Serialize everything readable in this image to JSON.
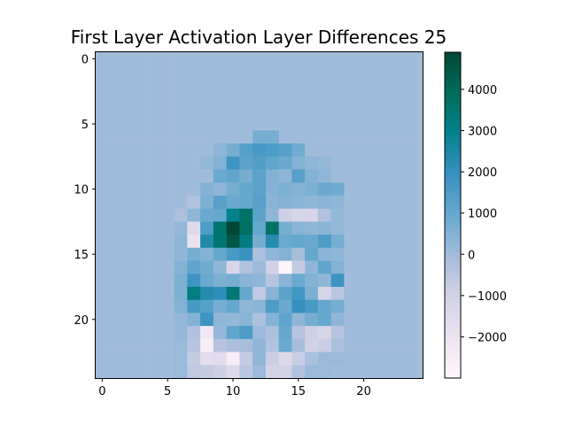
{
  "chart_data": {
    "type": "heatmap",
    "title": "First Layer Activation Layer Differences 25",
    "xlabel": "",
    "ylabel": "",
    "rows": 25,
    "cols": 25,
    "x_ticks": [
      0,
      5,
      10,
      15,
      20
    ],
    "y_ticks": [
      0,
      5,
      10,
      15,
      20
    ],
    "y_axis_inverted": true,
    "colormap": "PuBuGn",
    "value_range": [
      -3000,
      4900
    ],
    "colorbar_ticks": [
      4000,
      3000,
      2000,
      1000,
      0,
      -1000,
      -2000
    ],
    "colorbar_tick_labels": [
      "4000",
      "3000",
      "2000",
      "1000",
      "0",
      "−1000",
      "−2000"
    ],
    "background_value": 0,
    "cells": [
      {
        "r": 6,
        "c": 12,
        "v": 700
      },
      {
        "r": 6,
        "c": 13,
        "v": 700
      },
      {
        "r": 7,
        "c": 9,
        "v": 300
      },
      {
        "r": 7,
        "c": 10,
        "v": 700
      },
      {
        "r": 7,
        "c": 11,
        "v": 1300
      },
      {
        "r": 7,
        "c": 12,
        "v": 1600
      },
      {
        "r": 7,
        "c": 13,
        "v": 1500
      },
      {
        "r": 7,
        "c": 14,
        "v": 1300
      },
      {
        "r": 7,
        "c": 15,
        "v": 800
      },
      {
        "r": 8,
        "c": 8,
        "v": 200
      },
      {
        "r": 8,
        "c": 9,
        "v": 500
      },
      {
        "r": 8,
        "c": 10,
        "v": 1800
      },
      {
        "r": 8,
        "c": 11,
        "v": 1200
      },
      {
        "r": 8,
        "c": 12,
        "v": 1400
      },
      {
        "r": 8,
        "c": 13,
        "v": 1100
      },
      {
        "r": 8,
        "c": 14,
        "v": 900
      },
      {
        "r": 8,
        "c": 15,
        "v": 500
      },
      {
        "r": 8,
        "c": 16,
        "v": 300
      },
      {
        "r": 8,
        "c": 17,
        "v": 200
      },
      {
        "r": 9,
        "c": 9,
        "v": 900
      },
      {
        "r": 9,
        "c": 10,
        "v": 1100
      },
      {
        "r": 9,
        "c": 11,
        "v": 700
      },
      {
        "r": 9,
        "c": 12,
        "v": 1200
      },
      {
        "r": 9,
        "c": 13,
        "v": 500
      },
      {
        "r": 9,
        "c": 14,
        "v": 300
      },
      {
        "r": 9,
        "c": 15,
        "v": 1300
      },
      {
        "r": 9,
        "c": 16,
        "v": 500
      },
      {
        "r": 9,
        "c": 17,
        "v": 300
      },
      {
        "r": 10,
        "c": 8,
        "v": 500
      },
      {
        "r": 10,
        "c": 9,
        "v": 300
      },
      {
        "r": 10,
        "c": 10,
        "v": 700
      },
      {
        "r": 10,
        "c": 11,
        "v": 1000
      },
      {
        "r": 10,
        "c": 12,
        "v": 1200
      },
      {
        "r": 10,
        "c": 13,
        "v": 500
      },
      {
        "r": 10,
        "c": 14,
        "v": 600
      },
      {
        "r": 10,
        "c": 15,
        "v": 500
      },
      {
        "r": 10,
        "c": 16,
        "v": 600
      },
      {
        "r": 10,
        "c": 17,
        "v": 900
      },
      {
        "r": 10,
        "c": 18,
        "v": 800
      },
      {
        "r": 11,
        "c": 7,
        "v": -300
      },
      {
        "r": 11,
        "c": 8,
        "v": 600
      },
      {
        "r": 11,
        "c": 9,
        "v": 1300
      },
      {
        "r": 11,
        "c": 10,
        "v": 900
      },
      {
        "r": 11,
        "c": 11,
        "v": 1000
      },
      {
        "r": 11,
        "c": 12,
        "v": 1300
      },
      {
        "r": 11,
        "c": 13,
        "v": 400
      },
      {
        "r": 11,
        "c": 14,
        "v": 500
      },
      {
        "r": 11,
        "c": 15,
        "v": 400
      },
      {
        "r": 11,
        "c": 16,
        "v": 300
      },
      {
        "r": 11,
        "c": 17,
        "v": 400
      },
      {
        "r": 11,
        "c": 18,
        "v": 300
      },
      {
        "r": 12,
        "c": 6,
        "v": -200
      },
      {
        "r": 12,
        "c": 7,
        "v": 300
      },
      {
        "r": 12,
        "c": 8,
        "v": 900
      },
      {
        "r": 12,
        "c": 9,
        "v": 1000
      },
      {
        "r": 12,
        "c": 10,
        "v": 3000
      },
      {
        "r": 12,
        "c": 11,
        "v": 3700
      },
      {
        "r": 12,
        "c": 12,
        "v": 1200
      },
      {
        "r": 12,
        "c": 13,
        "v": 300
      },
      {
        "r": 12,
        "c": 14,
        "v": -900
      },
      {
        "r": 12,
        "c": 15,
        "v": -1200
      },
      {
        "r": 12,
        "c": 16,
        "v": -1200
      },
      {
        "r": 12,
        "c": 17,
        "v": -300
      },
      {
        "r": 12,
        "c": 18,
        "v": 200
      },
      {
        "r": 13,
        "c": 6,
        "v": 200
      },
      {
        "r": 13,
        "c": 7,
        "v": -1500
      },
      {
        "r": 13,
        "c": 8,
        "v": 1500
      },
      {
        "r": 13,
        "c": 9,
        "v": 3600
      },
      {
        "r": 13,
        "c": 10,
        "v": 4900
      },
      {
        "r": 13,
        "c": 11,
        "v": 3800
      },
      {
        "r": 13,
        "c": 12,
        "v": 1000
      },
      {
        "r": 13,
        "c": 13,
        "v": 3700
      },
      {
        "r": 13,
        "c": 14,
        "v": 700
      },
      {
        "r": 13,
        "c": 15,
        "v": 400
      },
      {
        "r": 13,
        "c": 16,
        "v": 300
      },
      {
        "r": 13,
        "c": 17,
        "v": 400
      },
      {
        "r": 13,
        "c": 18,
        "v": 200
      },
      {
        "r": 14,
        "c": 6,
        "v": 300
      },
      {
        "r": 14,
        "c": 7,
        "v": -2000
      },
      {
        "r": 14,
        "c": 8,
        "v": 2400
      },
      {
        "r": 14,
        "c": 9,
        "v": 3500
      },
      {
        "r": 14,
        "c": 10,
        "v": 4500
      },
      {
        "r": 14,
        "c": 11,
        "v": 3200
      },
      {
        "r": 14,
        "c": 12,
        "v": 700
      },
      {
        "r": 14,
        "c": 13,
        "v": 2300
      },
      {
        "r": 14,
        "c": 14,
        "v": 900
      },
      {
        "r": 14,
        "c": 15,
        "v": 1000
      },
      {
        "r": 14,
        "c": 16,
        "v": 900
      },
      {
        "r": 14,
        "c": 17,
        "v": 1500
      },
      {
        "r": 14,
        "c": 18,
        "v": 700
      },
      {
        "r": 15,
        "c": 6,
        "v": 300
      },
      {
        "r": 15,
        "c": 7,
        "v": 700
      },
      {
        "r": 15,
        "c": 8,
        "v": 500
      },
      {
        "r": 15,
        "c": 9,
        "v": 1000
      },
      {
        "r": 15,
        "c": 10,
        "v": 1600
      },
      {
        "r": 15,
        "c": 11,
        "v": 1900
      },
      {
        "r": 15,
        "c": 12,
        "v": -200
      },
      {
        "r": 15,
        "c": 13,
        "v": 300
      },
      {
        "r": 15,
        "c": 14,
        "v": 500
      },
      {
        "r": 15,
        "c": 15,
        "v": -100
      },
      {
        "r": 15,
        "c": 16,
        "v": 1000
      },
      {
        "r": 15,
        "c": 17,
        "v": 400
      },
      {
        "r": 15,
        "c": 18,
        "v": 300
      },
      {
        "r": 16,
        "c": 6,
        "v": 500
      },
      {
        "r": 16,
        "c": 7,
        "v": 1100
      },
      {
        "r": 16,
        "c": 8,
        "v": 800
      },
      {
        "r": 16,
        "c": 9,
        "v": 300
      },
      {
        "r": 16,
        "c": 10,
        "v": -1200
      },
      {
        "r": 16,
        "c": 11,
        "v": -300
      },
      {
        "r": 16,
        "c": 12,
        "v": 100
      },
      {
        "r": 16,
        "c": 13,
        "v": -1000
      },
      {
        "r": 16,
        "c": 14,
        "v": -2900
      },
      {
        "r": 16,
        "c": 15,
        "v": -700
      },
      {
        "r": 16,
        "c": 16,
        "v": 300
      },
      {
        "r": 16,
        "c": 17,
        "v": 1100
      },
      {
        "r": 16,
        "c": 18,
        "v": 500
      },
      {
        "r": 17,
        "c": 6,
        "v": 600
      },
      {
        "r": 17,
        "c": 7,
        "v": 1800
      },
      {
        "r": 17,
        "c": 8,
        "v": 900
      },
      {
        "r": 17,
        "c": 9,
        "v": 600
      },
      {
        "r": 17,
        "c": 10,
        "v": 700
      },
      {
        "r": 17,
        "c": 11,
        "v": 400
      },
      {
        "r": 17,
        "c": 12,
        "v": 300
      },
      {
        "r": 17,
        "c": 13,
        "v": -400
      },
      {
        "r": 17,
        "c": 14,
        "v": 400
      },
      {
        "r": 17,
        "c": 15,
        "v": 900
      },
      {
        "r": 17,
        "c": 16,
        "v": 500
      },
      {
        "r": 17,
        "c": 17,
        "v": 300
      },
      {
        "r": 17,
        "c": 18,
        "v": 1800
      },
      {
        "r": 18,
        "c": 6,
        "v": 600
      },
      {
        "r": 18,
        "c": 7,
        "v": 3200
      },
      {
        "r": 18,
        "c": 8,
        "v": 2300
      },
      {
        "r": 18,
        "c": 9,
        "v": 2100
      },
      {
        "r": 18,
        "c": 10,
        "v": 3400
      },
      {
        "r": 18,
        "c": 11,
        "v": 1000
      },
      {
        "r": 18,
        "c": 12,
        "v": -600
      },
      {
        "r": 18,
        "c": 13,
        "v": 400
      },
      {
        "r": 18,
        "c": 14,
        "v": 1200
      },
      {
        "r": 18,
        "c": 15,
        "v": 1700
      },
      {
        "r": 18,
        "c": 16,
        "v": 600
      },
      {
        "r": 18,
        "c": 17,
        "v": -1200
      },
      {
        "r": 18,
        "c": 18,
        "v": -500
      },
      {
        "r": 19,
        "c": 6,
        "v": 500
      },
      {
        "r": 19,
        "c": 7,
        "v": 1600
      },
      {
        "r": 19,
        "c": 8,
        "v": 1300
      },
      {
        "r": 19,
        "c": 9,
        "v": 700
      },
      {
        "r": 19,
        "c": 10,
        "v": 1000
      },
      {
        "r": 19,
        "c": 11,
        "v": 300
      },
      {
        "r": 19,
        "c": 12,
        "v": 400
      },
      {
        "r": 19,
        "c": 13,
        "v": 1500
      },
      {
        "r": 19,
        "c": 14,
        "v": 900
      },
      {
        "r": 19,
        "c": 15,
        "v": 2000
      },
      {
        "r": 19,
        "c": 16,
        "v": 1600
      },
      {
        "r": 19,
        "c": 17,
        "v": 1000
      },
      {
        "r": 19,
        "c": 18,
        "v": 700
      },
      {
        "r": 20,
        "c": 6,
        "v": 200
      },
      {
        "r": 20,
        "c": 7,
        "v": 500
      },
      {
        "r": 20,
        "c": 8,
        "v": 1800
      },
      {
        "r": 20,
        "c": 9,
        "v": 300
      },
      {
        "r": 20,
        "c": 10,
        "v": 200
      },
      {
        "r": 20,
        "c": 11,
        "v": 400
      },
      {
        "r": 20,
        "c": 12,
        "v": -200
      },
      {
        "r": 20,
        "c": 13,
        "v": 500
      },
      {
        "r": 20,
        "c": 14,
        "v": 1100
      },
      {
        "r": 20,
        "c": 15,
        "v": 300
      },
      {
        "r": 20,
        "c": 16,
        "v": 700
      },
      {
        "r": 20,
        "c": 17,
        "v": 1000
      },
      {
        "r": 20,
        "c": 18,
        "v": 300
      },
      {
        "r": 21,
        "c": 6,
        "v": 200
      },
      {
        "r": 21,
        "c": 7,
        "v": -300
      },
      {
        "r": 21,
        "c": 8,
        "v": -2200
      },
      {
        "r": 21,
        "c": 9,
        "v": 200
      },
      {
        "r": 21,
        "c": 10,
        "v": 1100
      },
      {
        "r": 21,
        "c": 11,
        "v": 1500
      },
      {
        "r": 21,
        "c": 12,
        "v": 100
      },
      {
        "r": 21,
        "c": 13,
        "v": -200
      },
      {
        "r": 21,
        "c": 14,
        "v": 1000
      },
      {
        "r": 21,
        "c": 15,
        "v": -400
      },
      {
        "r": 21,
        "c": 16,
        "v": -900
      },
      {
        "r": 21,
        "c": 17,
        "v": -1200
      },
      {
        "r": 21,
        "c": 18,
        "v": -400
      },
      {
        "r": 22,
        "c": 6,
        "v": 100
      },
      {
        "r": 22,
        "c": 7,
        "v": -400
      },
      {
        "r": 22,
        "c": 8,
        "v": -2500
      },
      {
        "r": 22,
        "c": 9,
        "v": -400
      },
      {
        "r": 22,
        "c": 10,
        "v": -200
      },
      {
        "r": 22,
        "c": 11,
        "v": -100
      },
      {
        "r": 22,
        "c": 12,
        "v": 300
      },
      {
        "r": 22,
        "c": 13,
        "v": -300
      },
      {
        "r": 22,
        "c": 14,
        "v": 900
      },
      {
        "r": 22,
        "c": 15,
        "v": -100
      },
      {
        "r": 22,
        "c": 16,
        "v": -1000
      },
      {
        "r": 22,
        "c": 17,
        "v": -800
      },
      {
        "r": 22,
        "c": 18,
        "v": -200
      },
      {
        "r": 23,
        "c": 6,
        "v": 100
      },
      {
        "r": 23,
        "c": 7,
        "v": -700
      },
      {
        "r": 23,
        "c": 8,
        "v": -1700
      },
      {
        "r": 23,
        "c": 9,
        "v": -1600
      },
      {
        "r": 23,
        "c": 10,
        "v": -2500
      },
      {
        "r": 23,
        "c": 11,
        "v": -700
      },
      {
        "r": 23,
        "c": 12,
        "v": 300
      },
      {
        "r": 23,
        "c": 13,
        "v": -800
      },
      {
        "r": 23,
        "c": 14,
        "v": -1400
      },
      {
        "r": 23,
        "c": 15,
        "v": -800
      },
      {
        "r": 23,
        "c": 16,
        "v": -200
      },
      {
        "r": 23,
        "c": 17,
        "v": 100
      },
      {
        "r": 23,
        "c": 18,
        "v": 100
      },
      {
        "r": 24,
        "c": 6,
        "v": 100
      },
      {
        "r": 24,
        "c": 7,
        "v": -600
      },
      {
        "r": 24,
        "c": 8,
        "v": -700
      },
      {
        "r": 24,
        "c": 9,
        "v": -900
      },
      {
        "r": 24,
        "c": 10,
        "v": -1500
      },
      {
        "r": 24,
        "c": 11,
        "v": -500
      },
      {
        "r": 24,
        "c": 12,
        "v": 100
      },
      {
        "r": 24,
        "c": 13,
        "v": -1100
      },
      {
        "r": 24,
        "c": 14,
        "v": -1000
      },
      {
        "r": 24,
        "c": 15,
        "v": -300
      },
      {
        "r": 24,
        "c": 16,
        "v": 100
      },
      {
        "r": 24,
        "c": 17,
        "v": 100
      },
      {
        "r": 24,
        "c": 18,
        "v": 0
      }
    ]
  }
}
